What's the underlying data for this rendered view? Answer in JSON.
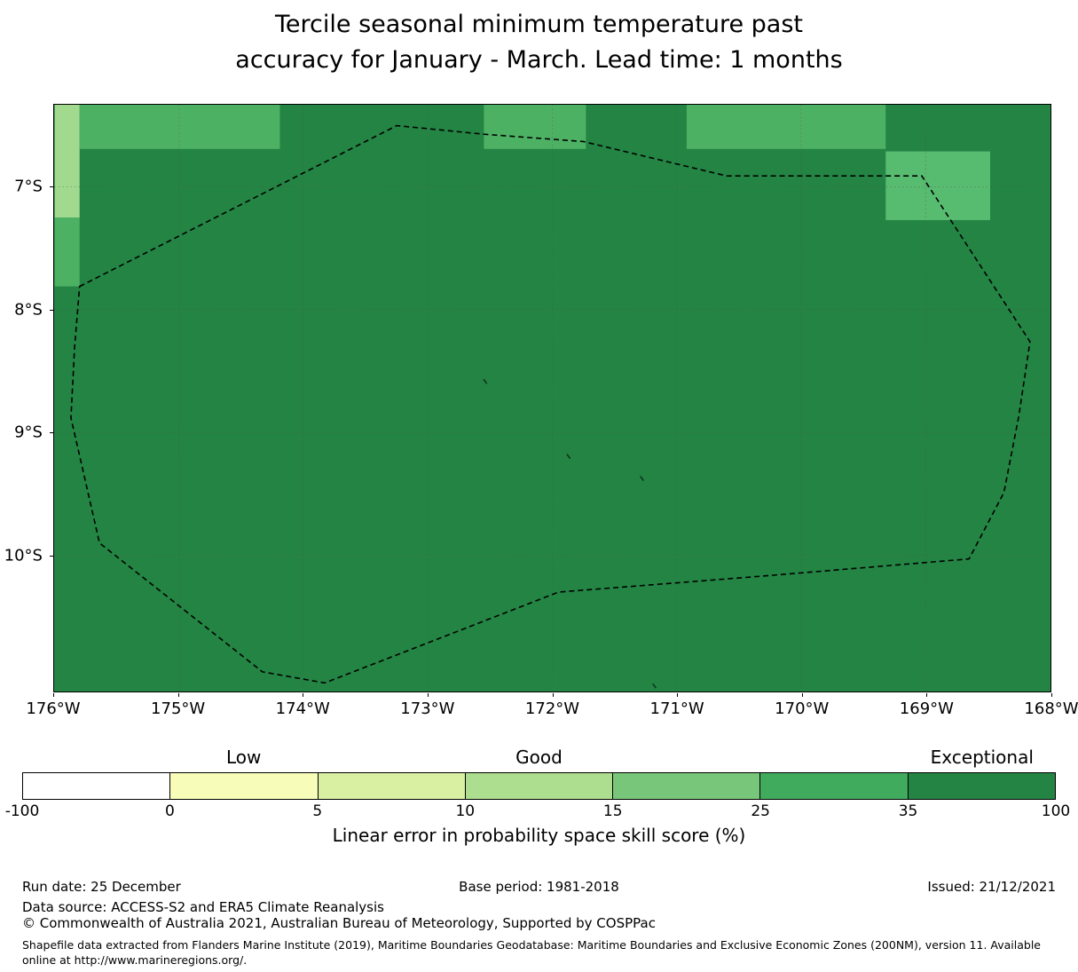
{
  "title": {
    "line1": "Tercile seasonal minimum temperature past",
    "line2": "accuracy for January - March. Lead time: 1 months"
  },
  "chart_data": {
    "type": "heatmap",
    "subtype": "geographic-skill-score-map",
    "title": "Tercile seasonal minimum temperature past accuracy for January - March. Lead time: 1 months",
    "map": {
      "extent": {
        "lon_west_W": 176.0,
        "lon_east_W": 168.0,
        "lat_north_S": 6.33,
        "lat_south_S": 11.11
      },
      "x_ticks": [
        {
          "lon_W": 176,
          "label": "176°W"
        },
        {
          "lon_W": 175,
          "label": "175°W"
        },
        {
          "lon_W": 174,
          "label": "174°W"
        },
        {
          "lon_W": 173,
          "label": "173°W"
        },
        {
          "lon_W": 172,
          "label": "172°W"
        },
        {
          "lon_W": 171,
          "label": "171°W"
        },
        {
          "lon_W": 170,
          "label": "170°W"
        },
        {
          "lon_W": 169,
          "label": "169°W"
        },
        {
          "lon_W": 168,
          "label": "168°W"
        }
      ],
      "y_ticks": [
        {
          "lat_S": 7,
          "label": "7°S"
        },
        {
          "lat_S": 8,
          "label": "8°S"
        },
        {
          "lat_S": 9,
          "label": "9°S"
        },
        {
          "lat_S": 10,
          "label": "10°S"
        }
      ],
      "base_fill": {
        "color": "#238443",
        "skill_bin": "35-100"
      },
      "patches": [
        {
          "lon_from_W": 176.0,
          "lon_to_W": 175.8,
          "lat_from_S": 6.33,
          "lat_to_S": 7.25,
          "color": "#a1d98f",
          "skill_bin": "10-15"
        },
        {
          "lon_from_W": 176.0,
          "lon_to_W": 175.8,
          "lat_from_S": 7.25,
          "lat_to_S": 7.81,
          "color": "#4db164",
          "skill_bin": "25-35"
        },
        {
          "lon_from_W": 175.8,
          "lon_to_W": 174.19,
          "lat_from_S": 6.33,
          "lat_to_S": 6.69,
          "color": "#4db164",
          "skill_bin": "25-35"
        },
        {
          "lon_from_W": 172.55,
          "lon_to_W": 171.73,
          "lat_from_S": 6.33,
          "lat_to_S": 6.69,
          "color": "#4db164",
          "skill_bin": "25-35"
        },
        {
          "lon_from_W": 170.92,
          "lon_to_W": 169.32,
          "lat_from_S": 6.33,
          "lat_to_S": 6.69,
          "color": "#4db164",
          "skill_bin": "25-35"
        },
        {
          "lon_from_W": 169.32,
          "lon_to_W": 168.48,
          "lat_from_S": 6.71,
          "lat_to_S": 7.27,
          "color": "#57bb70",
          "skill_bin": "25-35"
        }
      ],
      "eez_boundary_lonlat_W_S": [
        [
          175.8,
          7.81
        ],
        [
          173.25,
          6.5
        ],
        [
          172.55,
          6.57
        ],
        [
          171.75,
          6.63
        ],
        [
          170.6,
          6.91
        ],
        [
          169.03,
          6.91
        ],
        [
          168.16,
          8.26
        ],
        [
          168.25,
          8.87
        ],
        [
          168.37,
          9.49
        ],
        [
          168.65,
          10.03
        ],
        [
          170.31,
          10.17
        ],
        [
          171.95,
          10.3
        ],
        [
          173.83,
          11.04
        ],
        [
          174.33,
          10.95
        ],
        [
          175.64,
          9.9
        ],
        [
          175.87,
          8.88
        ],
        [
          175.84,
          8.3
        ]
      ],
      "islands_lonlat_W_S": [
        [
          172.55,
          8.57
        ],
        [
          171.88,
          9.18
        ],
        [
          171.29,
          9.36
        ],
        [
          171.19,
          11.05
        ]
      ],
      "grid_color": "#555555",
      "boundary_color": "#000000"
    },
    "colorbar": {
      "boundaries": [
        "-100",
        "0",
        "5",
        "10",
        "15",
        "25",
        "35",
        "100"
      ],
      "segment_colors": [
        "#ffffff",
        "#f7fcb9",
        "#d9f0a3",
        "#addd8e",
        "#78c679",
        "#41ab5d",
        "#238443"
      ],
      "category_labels": [
        {
          "label": "Low",
          "segment_index": 1
        },
        {
          "label": "Good",
          "segment_index": 3
        },
        {
          "label": "Exceptional",
          "segment_index": 6
        }
      ],
      "xlabel": "Linear error in probability space skill score (%)"
    }
  },
  "footer": {
    "run_date": "Run date: 25 December",
    "base_period": "Base period: 1981-2018",
    "issued": "Issued: 21/12/2021",
    "data_source": "Data source: ACCESS-S2 and ERA5 Climate Reanalysis",
    "copyright": "© Commonwealth of Australia 2021, Australian Bureau of Meteorology, Supported by COSPPac",
    "shapefile_note": "Shapefile data extracted from Flanders Marine Institute (2019), Maritime Boundaries Geodatabase: Maritime Boundaries and Exclusive Economic Zones (200NM), version 11. Available online at http://www.marineregions.org/."
  }
}
